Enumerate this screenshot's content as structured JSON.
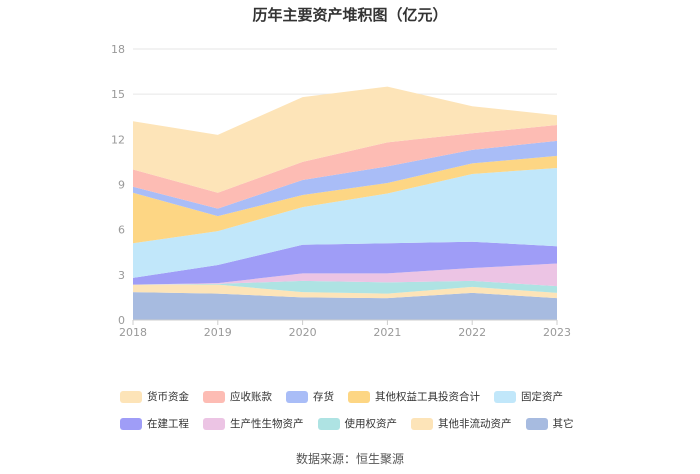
{
  "chart_data": {
    "type": "area",
    "stacked": true,
    "title": "历年主要资产堆积图（亿元）",
    "xlabel": "",
    "ylabel": "",
    "ylim": [
      0,
      18
    ],
    "yticks": [
      0,
      3,
      6,
      9,
      12,
      15,
      18
    ],
    "categories": [
      "2018",
      "2019",
      "2020",
      "2021",
      "2022",
      "2023"
    ],
    "grid": true,
    "legend_position": "bottom",
    "source": "数据来源：恒生聚源",
    "series": [
      {
        "name": "其它",
        "color": "#a7bbe0",
        "values": [
          1.85,
          1.75,
          1.5,
          1.45,
          1.8,
          1.45
        ]
      },
      {
        "name": "其他非流动资产",
        "color": "#fde4b8",
        "values": [
          0.5,
          0.6,
          0.35,
          0.3,
          0.4,
          0.35
        ]
      },
      {
        "name": "使用权资产",
        "color": "#aee3e3",
        "values": [
          0.0,
          0.05,
          0.75,
          0.75,
          0.4,
          0.45
        ]
      },
      {
        "name": "生产性生物资产",
        "color": "#ecc4e4",
        "values": [
          0.0,
          0.05,
          0.5,
          0.6,
          0.85,
          1.5
        ]
      },
      {
        "name": "在建工程",
        "color": "#9f9df7",
        "values": [
          0.45,
          1.2,
          1.9,
          2.0,
          1.75,
          1.15
        ]
      },
      {
        "name": "固定资产",
        "color": "#c1e7fa",
        "values": [
          2.3,
          2.25,
          2.5,
          3.3,
          4.5,
          5.2
        ]
      },
      {
        "name": "其他权益工具投资合计",
        "color": "#fdd684",
        "values": [
          3.35,
          1.0,
          0.8,
          0.7,
          0.7,
          0.8
        ]
      },
      {
        "name": "存货",
        "color": "#a9bdf7",
        "values": [
          0.4,
          0.5,
          1.0,
          1.1,
          0.9,
          1.0
        ]
      },
      {
        "name": "应收账款",
        "color": "#fdbcb4",
        "values": [
          1.15,
          1.05,
          1.2,
          1.6,
          1.1,
          1.05
        ]
      },
      {
        "name": "货币资金",
        "color": "#fde4b8",
        "values": [
          3.2,
          3.85,
          4.3,
          3.7,
          1.8,
          0.65
        ]
      }
    ],
    "legend_order": [
      "货币资金",
      "应收账款",
      "存货",
      "其他权益工具投资合计",
      "固定资产",
      "在建工程",
      "生产性生物资产",
      "使用权资产",
      "其他非流动资产",
      "其它"
    ]
  }
}
